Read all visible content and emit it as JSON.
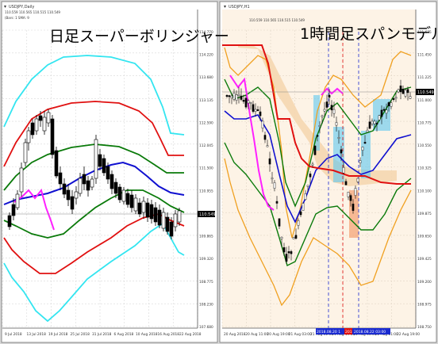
{
  "left_chart": {
    "symbol_line": "USDJPY,Daily",
    "ohlc_line": "110.559 110.565 110.515 110.549",
    "indicator_line": "(Bars: 1 SMA: 9",
    "title": "日足スーパーボリンジャー",
    "price_badge": "110.549",
    "y_ticks": [
      "114.770",
      "114.220",
      "113.680",
      "113.135",
      "112.590",
      "112.045",
      "111.500",
      "110.955",
      "110.410",
      "109.865",
      "109.320",
      "108.775",
      "108.230",
      "107.680"
    ],
    "x_ticks": [
      "9 Jul 2018",
      "13 Jul 2018",
      "19 Jul 2018",
      "25 Jul 2018",
      "31 Jul 2018",
      "6 Aug 2018",
      "10 Aug 2018",
      "16 Aug 2018",
      "22 Aug 2018"
    ],
    "colors": {
      "upper3": "#33e5f0",
      "upper2": "#e01010",
      "upper1": "#0a7a0a",
      "mid": "#1010d0",
      "lag": "#ff20ff",
      "candle": "#000000"
    }
  },
  "right_chart": {
    "symbol_line": "USDJPY,H1",
    "ohlc_line": "110.559 110.565 110.515 110.549",
    "title": "1時間足スパンモデル",
    "price_badge": "110.549",
    "y_ticks": [
      "111.675",
      "111.450",
      "111.225",
      "111.000",
      "110.775",
      "110.550",
      "110.325",
      "110.100",
      "109.875",
      "109.650",
      "109.425",
      "109.200",
      "108.975",
      "108.750"
    ],
    "x_ticks": [
      "20 Aug 2018",
      "20 Aug 11:00",
      "20 Aug 19:00",
      "21 Aug 03:00",
      "21 Aug 11:00",
      "21 Aug 19:00",
      "22 Aug 03:00",
      "22 Aug 11:00",
      "22 Aug 19:00"
    ],
    "date_labels": [
      "2018.08.20 1",
      "2018.0",
      "2018.08.22 03:00"
    ],
    "colors": {
      "cloud": "#f5d7b0",
      "span_red": "#e01010",
      "span_green": "#0a7a0a",
      "span_blue": "#1010d0",
      "band_orange": "#f0a020",
      "lag": "#ff20ff",
      "highlight": "#5ec8f0",
      "highlight2": "#f4a070"
    }
  }
}
